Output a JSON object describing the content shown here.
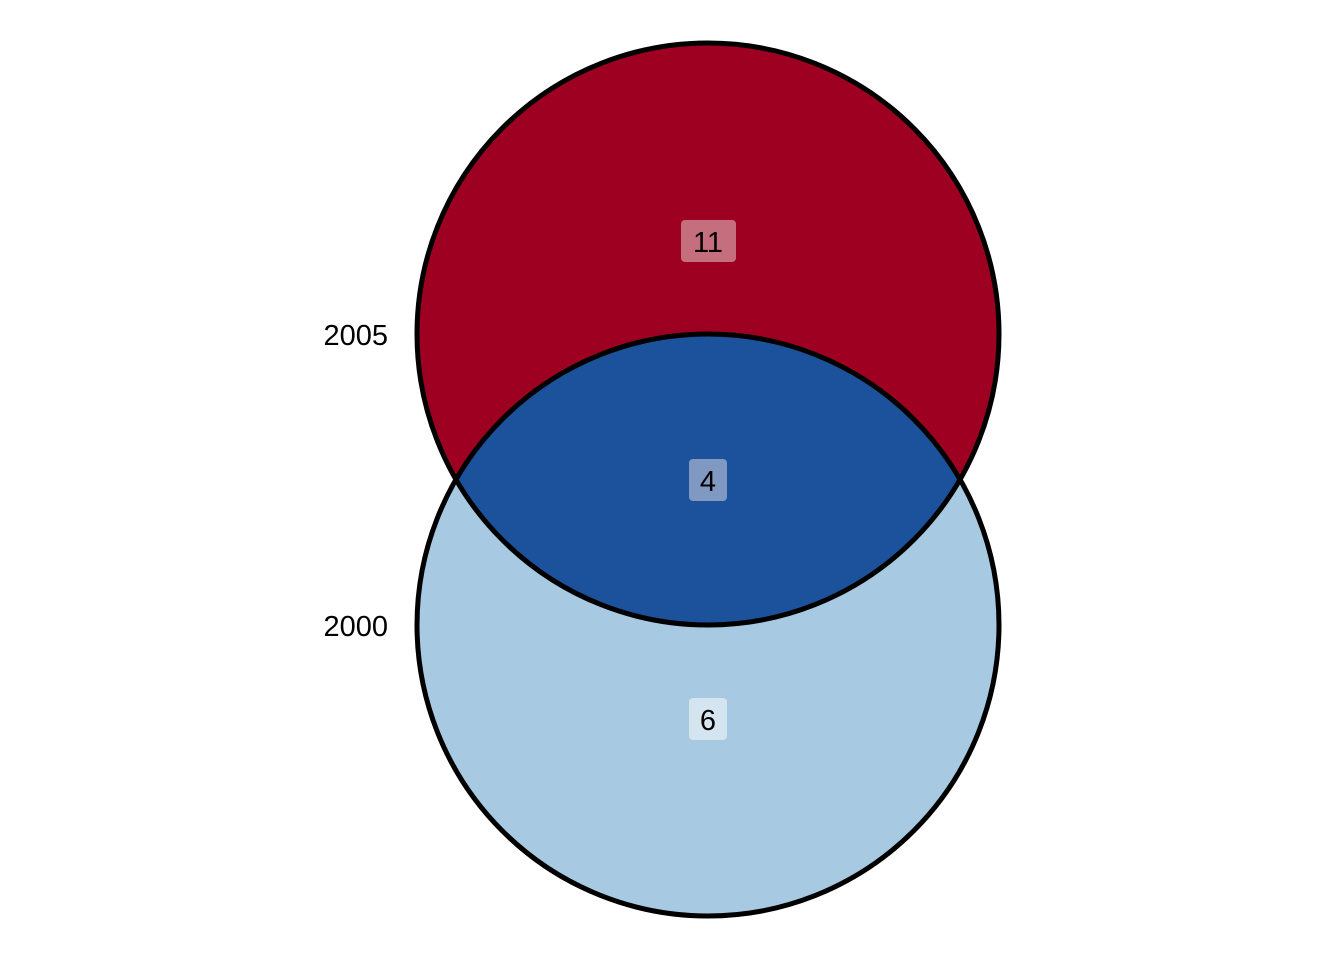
{
  "diagram": {
    "type": "venn",
    "outline_color": "#000000",
    "sets": [
      {
        "label": "2005",
        "color": "#9e0022"
      },
      {
        "label": "2000",
        "color": "#a7c9e1"
      }
    ],
    "regions": {
      "only_2005": {
        "count": "11",
        "color": "#9e0022",
        "badge_color": "#c56e7d"
      },
      "overlap": {
        "count": "4",
        "color": "#1c519b",
        "badge_color": "#8099c3"
      },
      "only_2000": {
        "count": "6",
        "color": "#a7c9e1",
        "badge_color": "#d5e5f0"
      }
    }
  }
}
